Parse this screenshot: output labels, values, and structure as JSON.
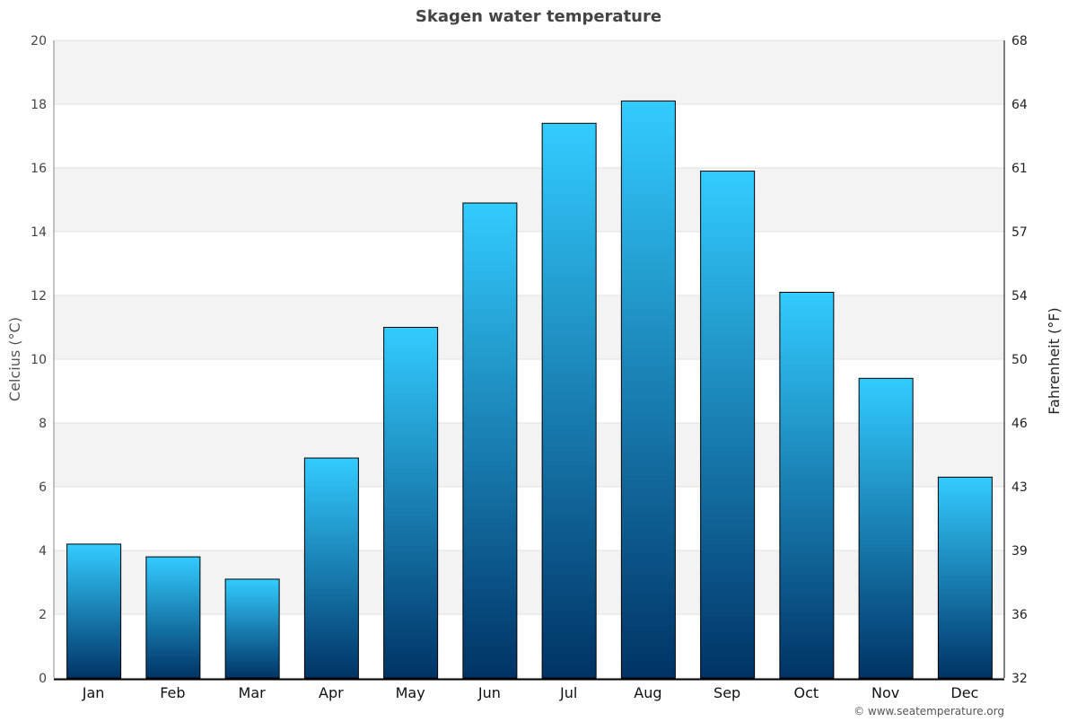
{
  "chart_data": {
    "type": "bar",
    "title": "Skagen water temperature",
    "ylabel": "Celcius (°C)",
    "y2label": "Fahrenheit (°F)",
    "categories": [
      "Jan",
      "Feb",
      "Mar",
      "Apr",
      "May",
      "Jun",
      "Jul",
      "Aug",
      "Sep",
      "Oct",
      "Nov",
      "Dec"
    ],
    "values": [
      4.2,
      3.8,
      3.1,
      6.9,
      11.0,
      14.9,
      17.4,
      18.1,
      15.9,
      12.1,
      9.4,
      6.3
    ],
    "ylim": [
      0,
      20
    ],
    "yticks": [
      0,
      2,
      4,
      6,
      8,
      10,
      12,
      14,
      16,
      18,
      20
    ],
    "y2ticks": [
      32,
      36,
      39,
      43,
      46,
      50,
      54,
      57,
      61,
      64,
      68
    ],
    "grid": true,
    "colors": {
      "bar_top": "#33ccff",
      "bar_bottom": "#003366",
      "band": "#f3f3f3"
    }
  },
  "footer": {
    "credit": "© www.seatemperature.org"
  }
}
